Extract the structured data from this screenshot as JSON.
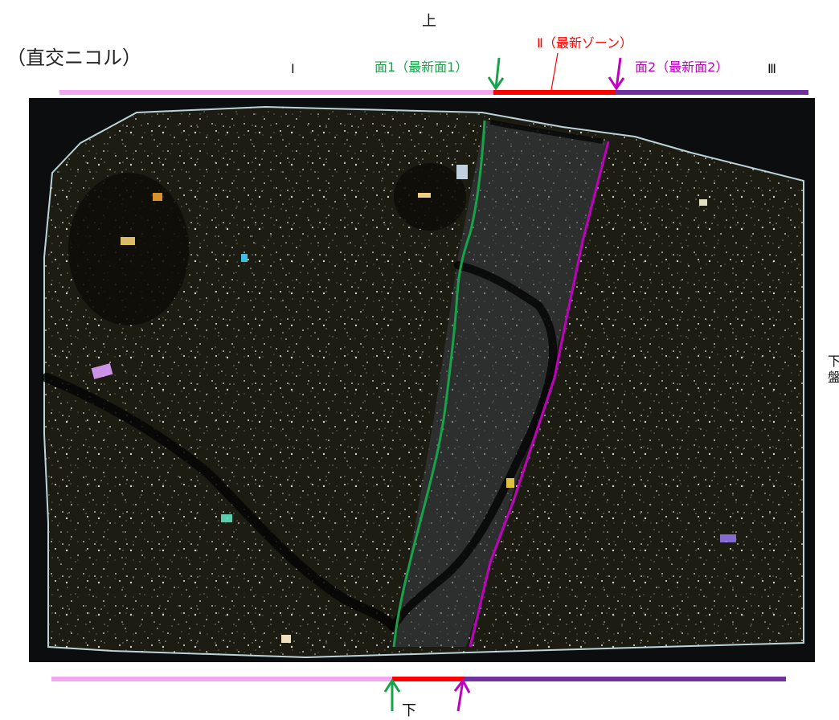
{
  "labels": {
    "mode": "（直交ニコル）",
    "top": "上",
    "bottom": "下",
    "side": "下盤",
    "zone_I": "Ⅰ",
    "zone_II": "Ⅱ（最新ゾーン）",
    "zone_III": "Ⅲ",
    "surface1": "面1（最新面1）",
    "surface2": "面2（最新面2）"
  },
  "colors": {
    "zone_I": "#f3a5ef",
    "zone_II": "#ff0000",
    "zone_III": "#7030a0",
    "surface1": "#16a34a",
    "surface2": "#c000c0",
    "sample_bg": "#0b0d0e",
    "sample_tint": "#2a2a16"
  }
}
